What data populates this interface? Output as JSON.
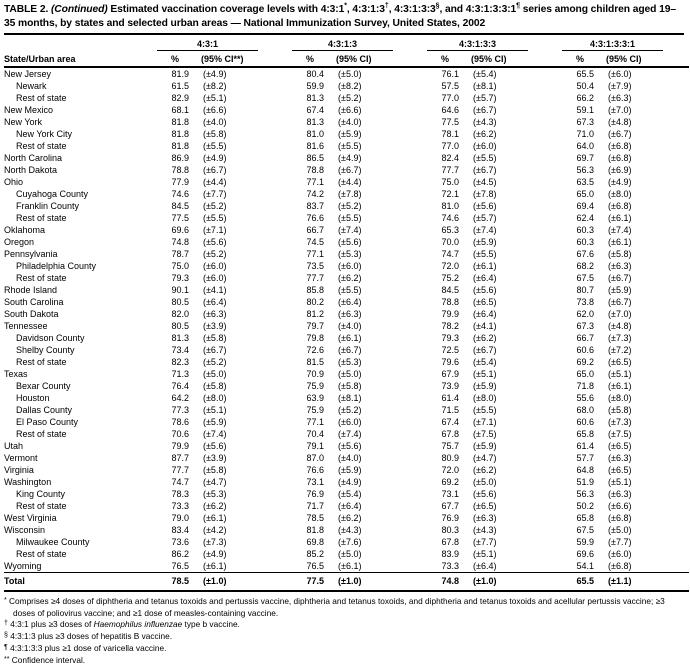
{
  "title": {
    "part1": "TABLE 2.",
    "part2": " (Continued)",
    "part3": " Estimated vaccination coverage levels with 4:3:1",
    "sup1": "*",
    "part4": ", 4:3:1:3",
    "sup2": "†",
    "part5": ", 4:3:1:3:3",
    "sup3": "§",
    "part6": ", and 4:3:1:3:3:1",
    "sup4": "¶",
    "part7": " series among children aged 19–35 months, by states and selected urban areas — National Immunization Survey, United States, 2002"
  },
  "table": {
    "state_col_header": "State/Urban area",
    "groups": [
      {
        "label": "4:3:1",
        "pct_header": "%",
        "ci_header": "(95% CI**)"
      },
      {
        "label": "4:3:1:3",
        "pct_header": "%",
        "ci_header": "(95% CI)"
      },
      {
        "label": "4:3:1:3:3",
        "pct_header": "%",
        "ci_header": "(95% CI)"
      },
      {
        "label": "4:3:1:3:3:1",
        "pct_header": "%",
        "ci_header": "(95% CI)"
      }
    ],
    "rows": [
      {
        "name": "New Jersey",
        "level": 0,
        "values": [
          "81.9",
          "(±4.9)",
          "80.4",
          "(±5.0)",
          "76.1",
          "(±5.4)",
          "65.5",
          "(±6.0)"
        ]
      },
      {
        "name": "Newark",
        "level": 1,
        "values": [
          "61.5",
          "(±8.2)",
          "59.9",
          "(±8.2)",
          "57.5",
          "(±8.1)",
          "50.4",
          "(±7.9)"
        ]
      },
      {
        "name": "Rest of state",
        "level": 1,
        "values": [
          "82.9",
          "(±5.1)",
          "81.3",
          "(±5.2)",
          "77.0",
          "(±5.7)",
          "66.2",
          "(±6.3)"
        ]
      },
      {
        "name": "New Mexico",
        "level": 0,
        "values": [
          "68.1",
          "(±6.6)",
          "67.4",
          "(±6.6)",
          "64.6",
          "(±6.7)",
          "59.1",
          "(±7.0)"
        ]
      },
      {
        "name": "New York",
        "level": 0,
        "values": [
          "81.8",
          "(±4.0)",
          "81.3",
          "(±4.0)",
          "77.5",
          "(±4.3)",
          "67.3",
          "(±4.8)"
        ]
      },
      {
        "name": "New York City",
        "level": 1,
        "values": [
          "81.8",
          "(±5.8)",
          "81.0",
          "(±5.9)",
          "78.1",
          "(±6.2)",
          "71.0",
          "(±6.7)"
        ]
      },
      {
        "name": "Rest of state",
        "level": 1,
        "values": [
          "81.8",
          "(±5.5)",
          "81.6",
          "(±5.5)",
          "77.0",
          "(±6.0)",
          "64.0",
          "(±6.8)"
        ]
      },
      {
        "name": "North Carolina",
        "level": 0,
        "values": [
          "86.9",
          "(±4.9)",
          "86.5",
          "(±4.9)",
          "82.4",
          "(±5.5)",
          "69.7",
          "(±6.8)"
        ]
      },
      {
        "name": "North Dakota",
        "level": 0,
        "values": [
          "78.8",
          "(±6.7)",
          "78.8",
          "(±6.7)",
          "77.7",
          "(±6.7)",
          "56.3",
          "(±6.9)"
        ]
      },
      {
        "name": "Ohio",
        "level": 0,
        "values": [
          "77.9",
          "(±4.4)",
          "77.1",
          "(±4.4)",
          "75.0",
          "(±4.5)",
          "63.5",
          "(±4.9)"
        ]
      },
      {
        "name": "Cuyahoga County",
        "level": 1,
        "values": [
          "74.6",
          "(±7.7)",
          "74.2",
          "(±7.8)",
          "72.1",
          "(±7.8)",
          "65.0",
          "(±8.0)"
        ]
      },
      {
        "name": "Franklin County",
        "level": 1,
        "values": [
          "84.5",
          "(±5.2)",
          "83.7",
          "(±5.2)",
          "81.0",
          "(±5.6)",
          "69.4",
          "(±6.8)"
        ]
      },
      {
        "name": "Rest of state",
        "level": 1,
        "values": [
          "77.5",
          "(±5.5)",
          "76.6",
          "(±5.5)",
          "74.6",
          "(±5.7)",
          "62.4",
          "(±6.1)"
        ]
      },
      {
        "name": "Oklahoma",
        "level": 0,
        "values": [
          "69.6",
          "(±7.1)",
          "66.7",
          "(±7.4)",
          "65.3",
          "(±7.4)",
          "60.3",
          "(±7.4)"
        ]
      },
      {
        "name": "Oregon",
        "level": 0,
        "values": [
          "74.8",
          "(±5.6)",
          "74.5",
          "(±5.6)",
          "70.0",
          "(±5.9)",
          "60.3",
          "(±6.1)"
        ]
      },
      {
        "name": "Pennsylvania",
        "level": 0,
        "values": [
          "78.7",
          "(±5.2)",
          "77.1",
          "(±5.3)",
          "74.7",
          "(±5.5)",
          "67.6",
          "(±5.8)"
        ]
      },
      {
        "name": "Philadelphia County",
        "level": 1,
        "values": [
          "75.0",
          "(±6.0)",
          "73.5",
          "(±6.0)",
          "72.0",
          "(±6.1)",
          "68.2",
          "(±6.3)"
        ]
      },
      {
        "name": "Rest of state",
        "level": 1,
        "values": [
          "79.3",
          "(±6.0)",
          "77.7",
          "(±6.2)",
          "75.2",
          "(±6.4)",
          "67.5",
          "(±6.7)"
        ]
      },
      {
        "name": "Rhode Island",
        "level": 0,
        "values": [
          "90.1",
          "(±4.1)",
          "85.8",
          "(±5.5)",
          "84.5",
          "(±5.6)",
          "80.7",
          "(±5.9)"
        ]
      },
      {
        "name": "South Carolina",
        "level": 0,
        "values": [
          "80.5",
          "(±6.4)",
          "80.2",
          "(±6.4)",
          "78.8",
          "(±6.5)",
          "73.8",
          "(±6.7)"
        ]
      },
      {
        "name": "South Dakota",
        "level": 0,
        "values": [
          "82.0",
          "(±6.3)",
          "81.2",
          "(±6.3)",
          "79.9",
          "(±6.4)",
          "62.0",
          "(±7.0)"
        ]
      },
      {
        "name": "Tennessee",
        "level": 0,
        "values": [
          "80.5",
          "(±3.9)",
          "79.7",
          "(±4.0)",
          "78.2",
          "(±4.1)",
          "67.3",
          "(±4.8)"
        ]
      },
      {
        "name": "Davidson County",
        "level": 1,
        "values": [
          "81.3",
          "(±5.8)",
          "79.8",
          "(±6.1)",
          "79.3",
          "(±6.2)",
          "66.7",
          "(±7.3)"
        ]
      },
      {
        "name": "Shelby County",
        "level": 1,
        "values": [
          "73.4",
          "(±6.7)",
          "72.6",
          "(±6.7)",
          "72.5",
          "(±6.7)",
          "60.6",
          "(±7.2)"
        ]
      },
      {
        "name": "Rest of state",
        "level": 1,
        "values": [
          "82.3",
          "(±5.2)",
          "81.5",
          "(±5.3)",
          "79.6",
          "(±5.4)",
          "69.2",
          "(±6.5)"
        ]
      },
      {
        "name": "Texas",
        "level": 0,
        "values": [
          "71.3",
          "(±5.0)",
          "70.9",
          "(±5.0)",
          "67.9",
          "(±5.1)",
          "65.0",
          "(±5.1)"
        ]
      },
      {
        "name": "Bexar County",
        "level": 1,
        "values": [
          "76.4",
          "(±5.8)",
          "75.9",
          "(±5.8)",
          "73.9",
          "(±5.9)",
          "71.8",
          "(±6.1)"
        ]
      },
      {
        "name": "Houston",
        "level": 1,
        "values": [
          "64.2",
          "(±8.0)",
          "63.9",
          "(±8.1)",
          "61.4",
          "(±8.0)",
          "55.6",
          "(±8.0)"
        ]
      },
      {
        "name": "Dallas County",
        "level": 1,
        "values": [
          "77.3",
          "(±5.1)",
          "75.9",
          "(±5.2)",
          "71.5",
          "(±5.5)",
          "68.0",
          "(±5.8)"
        ]
      },
      {
        "name": "El Paso County",
        "level": 1,
        "values": [
          "78.6",
          "(±5.9)",
          "77.1",
          "(±6.0)",
          "67.4",
          "(±7.1)",
          "60.6",
          "(±7.3)"
        ]
      },
      {
        "name": "Rest of state",
        "level": 1,
        "values": [
          "70.6",
          "(±7.4)",
          "70.4",
          "(±7.4)",
          "67.8",
          "(±7.5)",
          "65.8",
          "(±7.5)"
        ]
      },
      {
        "name": "Utah",
        "level": 0,
        "values": [
          "79.9",
          "(±5.6)",
          "79.1",
          "(±5.6)",
          "75.7",
          "(±5.9)",
          "61.4",
          "(±6.5)"
        ]
      },
      {
        "name": "Vermont",
        "level": 0,
        "values": [
          "87.7",
          "(±3.9)",
          "87.0",
          "(±4.0)",
          "80.9",
          "(±4.7)",
          "57.7",
          "(±6.3)"
        ]
      },
      {
        "name": "Virginia",
        "level": 0,
        "values": [
          "77.7",
          "(±5.8)",
          "76.6",
          "(±5.9)",
          "72.0",
          "(±6.2)",
          "64.8",
          "(±6.5)"
        ]
      },
      {
        "name": "Washington",
        "level": 0,
        "values": [
          "74.7",
          "(±4.7)",
          "73.1",
          "(±4.9)",
          "69.2",
          "(±5.0)",
          "51.9",
          "(±5.1)"
        ]
      },
      {
        "name": "King County",
        "level": 1,
        "values": [
          "78.3",
          "(±5.3)",
          "76.9",
          "(±5.4)",
          "73.1",
          "(±5.6)",
          "56.3",
          "(±6.3)"
        ]
      },
      {
        "name": "Rest of state",
        "level": 1,
        "values": [
          "73.3",
          "(±6.2)",
          "71.7",
          "(±6.4)",
          "67.7",
          "(±6.5)",
          "50.2",
          "(±6.6)"
        ]
      },
      {
        "name": "West Virginia",
        "level": 0,
        "values": [
          "79.0",
          "(±6.1)",
          "78.5",
          "(±6.2)",
          "76.9",
          "(±6.3)",
          "65.8",
          "(±6.8)"
        ]
      },
      {
        "name": "Wisconsin",
        "level": 0,
        "values": [
          "83.4",
          "(±4.2)",
          "81.8",
          "(±4.3)",
          "80.3",
          "(±4.3)",
          "67.5",
          "(±5.0)"
        ]
      },
      {
        "name": "Milwaukee County",
        "level": 1,
        "values": [
          "73.6",
          "(±7.3)",
          "69.8",
          "(±7.6)",
          "67.8",
          "(±7.7)",
          "59.9",
          "(±7.7)"
        ]
      },
      {
        "name": "Rest of state",
        "level": 1,
        "values": [
          "86.2",
          "(±4.9)",
          "85.2",
          "(±5.0)",
          "83.9",
          "(±5.1)",
          "69.6",
          "(±6.0)"
        ]
      },
      {
        "name": "Wyoming",
        "level": 0,
        "values": [
          "76.5",
          "(±6.1)",
          "76.5",
          "(±6.1)",
          "73.3",
          "(±6.4)",
          "54.1",
          "(±6.8)"
        ]
      }
    ],
    "total_row": {
      "name": "Total",
      "level": 0,
      "values": [
        "78.5",
        "(±1.0)",
        "77.5",
        "(±1.0)",
        "74.8",
        "(±1.0)",
        "65.5",
        "(±1.1)"
      ]
    }
  },
  "footnotes": [
    {
      "marker": "*",
      "text": "Comprises ≥4 doses of diphtheria and tetanus toxoids and pertussis vaccine, diphtheria and tetanus toxoids, and diphtheria and tetanus toxoids and acellular pertussis vaccine; ≥3 doses of poliovirus vaccine; and ≥1 dose of measles-containing vaccine."
    },
    {
      "marker": "†",
      "pre": "4:3:1 plus ≥3 doses of ",
      "italic": "Haemophilus influenzae",
      "post": " type b vaccine."
    },
    {
      "marker": "§",
      "text": "4:3:1:3 plus ≥3 doses of hepatitis B vaccine."
    },
    {
      "marker": "¶",
      "text": "4:3:1:3:3 plus ≥1 dose of varicella vaccine."
    },
    {
      "marker": "**",
      "text": "Confidence interval."
    }
  ],
  "colors": {
    "text": "#000000",
    "background": "#ffffff",
    "rule": "#000000"
  }
}
